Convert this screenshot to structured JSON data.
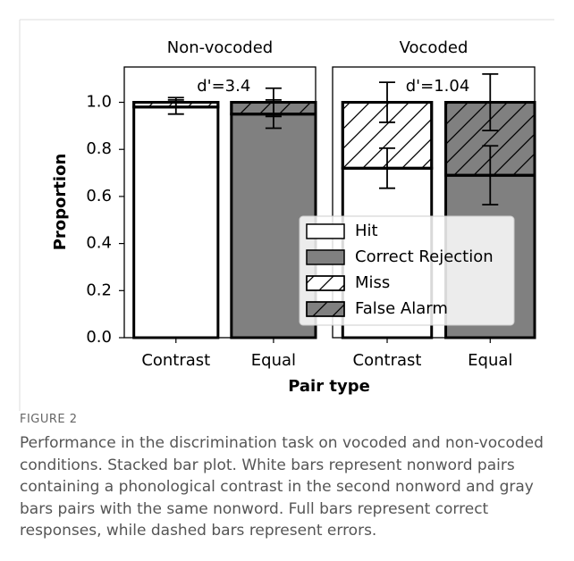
{
  "chart_data": {
    "type": "bar",
    "panels": [
      {
        "title": "Non-vocoded",
        "annotation": "d'=3.4"
      },
      {
        "title": "Vocoded",
        "annotation": "d'=1.04"
      }
    ],
    "categories": [
      "Contrast",
      "Equal",
      "Contrast",
      "Equal"
    ],
    "series": [
      {
        "name": "Hit",
        "color": "#ffffff",
        "hatch": false,
        "values": [
          0.98,
          null,
          0.72,
          null
        ],
        "errors": [
          0.03,
          null,
          0.085,
          null
        ]
      },
      {
        "name": "Correct Rejection",
        "color": "#808080",
        "hatch": false,
        "values": [
          null,
          0.95,
          null,
          0.69
        ],
        "errors": [
          null,
          0.06,
          null,
          0.125
        ]
      },
      {
        "name": "Miss",
        "color": "#ffffff",
        "hatch": true,
        "values": [
          0.02,
          null,
          0.28,
          null
        ],
        "errors": [
          0.02,
          null,
          0.085,
          null
        ]
      },
      {
        "name": "False Alarm",
        "color": "#808080",
        "hatch": true,
        "values": [
          null,
          0.05,
          null,
          0.31
        ],
        "errors": [
          null,
          0.06,
          null,
          0.12
        ]
      }
    ],
    "stacked": true,
    "ylabel": "Proportion",
    "xlabel": "Pair type",
    "ylim": [
      0,
      1.15
    ],
    "yticks": [
      {
        "value": 0,
        "label": "0.0"
      },
      0.2,
      0.4,
      0.6,
      0.8,
      {
        "value": 1,
        "label": "1.0"
      }
    ],
    "legend": "lower right"
  },
  "caption": {
    "label": "FIGURE 2",
    "text": "Performance in the discrimination task on vocoded and non-vocoded conditions. Stacked bar plot. White bars represent nonword pairs containing a phonological contrast in the second nonword and gray bars pairs with the same nonword. Full bars represent correct responses, while dashed bars represent errors."
  }
}
